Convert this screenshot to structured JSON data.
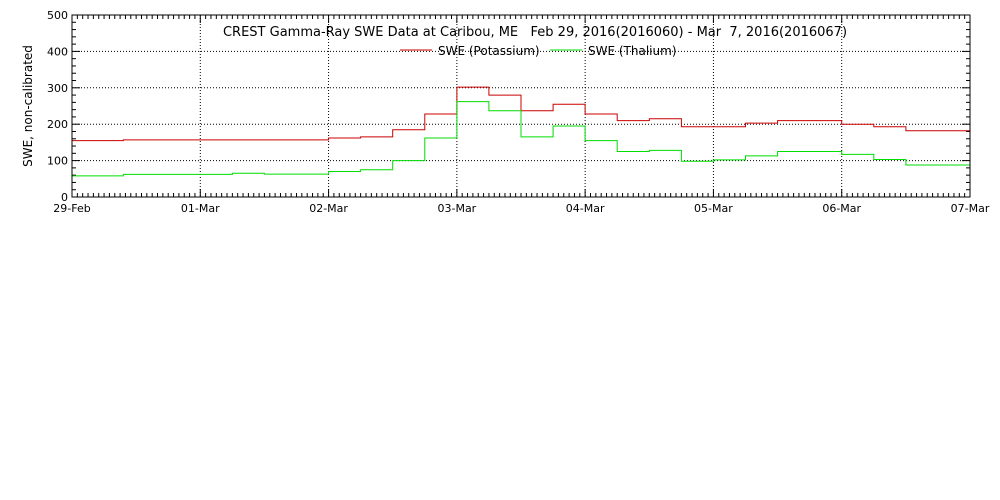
{
  "chart_data": {
    "type": "line",
    "title": "CREST Gamma-Ray SWE Data at Caribou, ME   Feb 29, 2016(2016060) - Mar  7, 2016(2016067)",
    "ylabel": "SWE, non-calibrated",
    "xlabel": "",
    "ylim": [
      0,
      500
    ],
    "yticks": [
      0,
      100,
      200,
      300,
      400,
      500
    ],
    "xlim": [
      0,
      7
    ],
    "xticks": [
      {
        "x": 0,
        "label": "29-Feb"
      },
      {
        "x": 1,
        "label": "01-Mar"
      },
      {
        "x": 2,
        "label": "02-Mar"
      },
      {
        "x": 3,
        "label": "03-Mar"
      },
      {
        "x": 4,
        "label": "04-Mar"
      },
      {
        "x": 5,
        "label": "05-Mar"
      },
      {
        "x": 6,
        "label": "06-Mar"
      },
      {
        "x": 7,
        "label": "07-Mar"
      }
    ],
    "grid": true,
    "legend_position": "top-center",
    "series": [
      {
        "name": "SWE (Potassium)",
        "color": "#cc0000",
        "points": [
          [
            0,
            155
          ],
          [
            0.4,
            155
          ],
          [
            0.4,
            157
          ],
          [
            2.0,
            157
          ],
          [
            2.0,
            162
          ],
          [
            2.25,
            162
          ],
          [
            2.25,
            165
          ],
          [
            2.5,
            165
          ],
          [
            2.5,
            185
          ],
          [
            2.75,
            185
          ],
          [
            2.75,
            228
          ],
          [
            3.0,
            228
          ],
          [
            3.0,
            302
          ],
          [
            3.25,
            302
          ],
          [
            3.25,
            280
          ],
          [
            3.5,
            280
          ],
          [
            3.5,
            237
          ],
          [
            3.75,
            237
          ],
          [
            3.75,
            255
          ],
          [
            4.0,
            255
          ],
          [
            4.0,
            228
          ],
          [
            4.25,
            228
          ],
          [
            4.25,
            210
          ],
          [
            4.5,
            210
          ],
          [
            4.5,
            215
          ],
          [
            4.75,
            215
          ],
          [
            4.75,
            193
          ],
          [
            5.25,
            193
          ],
          [
            5.25,
            203
          ],
          [
            5.5,
            203
          ],
          [
            5.5,
            210
          ],
          [
            6.0,
            210
          ],
          [
            6.0,
            200
          ],
          [
            6.25,
            200
          ],
          [
            6.25,
            193
          ],
          [
            6.5,
            193
          ],
          [
            6.5,
            182
          ],
          [
            7.0,
            182
          ]
        ]
      },
      {
        "name": "SWE (Thalium)",
        "color": "#00dd00",
        "points": [
          [
            0,
            58
          ],
          [
            0.4,
            58
          ],
          [
            0.4,
            62
          ],
          [
            1.25,
            62
          ],
          [
            1.25,
            65
          ],
          [
            1.5,
            65
          ],
          [
            1.5,
            63
          ],
          [
            2.0,
            63
          ],
          [
            2.0,
            70
          ],
          [
            2.25,
            70
          ],
          [
            2.25,
            75
          ],
          [
            2.5,
            75
          ],
          [
            2.5,
            100
          ],
          [
            2.75,
            100
          ],
          [
            2.75,
            162
          ],
          [
            3.0,
            162
          ],
          [
            3.0,
            262
          ],
          [
            3.25,
            262
          ],
          [
            3.25,
            237
          ],
          [
            3.5,
            237
          ],
          [
            3.5,
            165
          ],
          [
            3.75,
            165
          ],
          [
            3.75,
            195
          ],
          [
            4.0,
            195
          ],
          [
            4.0,
            155
          ],
          [
            4.25,
            155
          ],
          [
            4.25,
            125
          ],
          [
            4.5,
            125
          ],
          [
            4.5,
            128
          ],
          [
            4.75,
            128
          ],
          [
            4.75,
            98
          ],
          [
            5.0,
            98
          ],
          [
            5.0,
            102
          ],
          [
            5.25,
            102
          ],
          [
            5.25,
            113
          ],
          [
            5.5,
            113
          ],
          [
            5.5,
            125
          ],
          [
            6.0,
            125
          ],
          [
            6.0,
            117
          ],
          [
            6.25,
            117
          ],
          [
            6.25,
            103
          ],
          [
            6.5,
            103
          ],
          [
            6.5,
            88
          ],
          [
            7.0,
            88
          ]
        ]
      }
    ]
  }
}
